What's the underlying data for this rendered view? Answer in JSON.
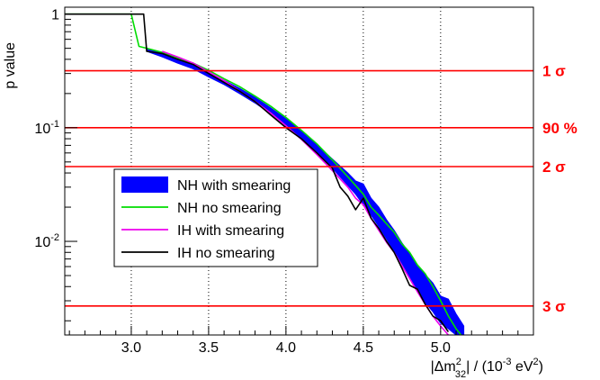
{
  "chart_data": {
    "type": "line",
    "xlabel_main": "|Δm",
    "xlabel_sup": "2",
    "xlabel_sub": "32",
    "xlabel_rest": "| / (10",
    "xlabel_exp": "-3",
    "xlabel_unit": " eV",
    "xlabel_unit_sup": "2",
    "xlabel_close": ")",
    "ylabel": "p value",
    "xlim": [
      2.57,
      5.6
    ],
    "ylim": [
      0.0015,
      1.15
    ],
    "y_scale": "log",
    "x_ticks": [
      "3.0",
      "3.5",
      "4.0",
      "4.5",
      "5.0"
    ],
    "x_tick_values": [
      3.0,
      3.5,
      4.0,
      4.5,
      5.0
    ],
    "y_tick_labels": [
      {
        "value": 1,
        "base": "1",
        "exp": ""
      },
      {
        "value": 0.1,
        "base": "10",
        "exp": "-1"
      },
      {
        "value": 0.01,
        "base": "10",
        "exp": "-2"
      }
    ],
    "grid": "vertical dotted at x ticks",
    "reference_lines": [
      {
        "label": "1 σ",
        "value": 0.3173
      },
      {
        "label": "90 %",
        "value": 0.1
      },
      {
        "label": "2 σ",
        "value": 0.0455
      },
      {
        "label": "3 σ",
        "value": 0.0027
      }
    ],
    "legend_position": "middle-left",
    "series": [
      {
        "name": "NH with smearing",
        "style": "band",
        "color": "#0000ff",
        "x": [
          3.1,
          3.2,
          3.3,
          3.4,
          3.5,
          3.6,
          3.7,
          3.8,
          3.9,
          4.0,
          4.1,
          4.2,
          4.3,
          4.4,
          4.45,
          4.5,
          4.55,
          4.6,
          4.65,
          4.7,
          4.75,
          4.8,
          4.85,
          4.9,
          4.95,
          5.0,
          5.05,
          5.1,
          5.15
        ],
        "y_low": [
          0.47,
          0.42,
          0.37,
          0.33,
          0.28,
          0.24,
          0.2,
          0.165,
          0.133,
          0.104,
          0.08,
          0.06,
          0.044,
          0.031,
          0.026,
          0.021,
          0.017,
          0.0135,
          0.0105,
          0.0082,
          0.0064,
          0.0049,
          0.0037,
          0.0029,
          0.0024,
          0.0019,
          0.0017,
          0.0015,
          0.0014
        ],
        "y_high": [
          0.5,
          0.45,
          0.4,
          0.355,
          0.305,
          0.262,
          0.222,
          0.185,
          0.15,
          0.12,
          0.094,
          0.071,
          0.053,
          0.04,
          0.034,
          0.032,
          0.024,
          0.02,
          0.0155,
          0.0125,
          0.0097,
          0.0078,
          0.006,
          0.0051,
          0.0043,
          0.0033,
          0.0031,
          0.0023,
          0.0018
        ]
      },
      {
        "name": "NH no smearing",
        "style": "line",
        "color": "#00dd00",
        "x": [
          2.57,
          3.0,
          3.05,
          3.1,
          3.2,
          3.3,
          3.4,
          3.5,
          3.6,
          3.7,
          3.8,
          3.9,
          4.0,
          4.1,
          4.2,
          4.3,
          4.4,
          4.5,
          4.55,
          4.6,
          4.7,
          4.75,
          4.8,
          4.85,
          4.9,
          4.95,
          5.0,
          5.05,
          5.1,
          5.15
        ],
        "y": [
          1.0,
          1.0,
          0.52,
          0.5,
          0.46,
          0.41,
          0.37,
          0.32,
          0.27,
          0.23,
          0.19,
          0.155,
          0.123,
          0.095,
          0.072,
          0.052,
          0.037,
          0.026,
          0.02,
          0.017,
          0.012,
          0.0095,
          0.008,
          0.0062,
          0.0052,
          0.004,
          0.003,
          0.0022,
          0.0017,
          0.0014
        ]
      },
      {
        "name": "IH with smearing",
        "style": "line",
        "color": "#ee00ee",
        "x": [
          3.2,
          3.3,
          3.4,
          3.5,
          3.6,
          3.7,
          3.8,
          3.9,
          4.0,
          4.1,
          4.2,
          4.3,
          4.4,
          4.45,
          4.5,
          4.55,
          4.6,
          4.65,
          4.7,
          4.75,
          4.8,
          4.85,
          4.9,
          4.95,
          5.0,
          5.05,
          5.1
        ],
        "y": [
          0.47,
          0.42,
          0.37,
          0.31,
          0.26,
          0.21,
          0.17,
          0.135,
          0.104,
          0.079,
          0.058,
          0.042,
          0.03,
          0.024,
          0.021,
          0.016,
          0.0125,
          0.0098,
          0.008,
          0.0061,
          0.0047,
          0.0036,
          0.0028,
          0.0022,
          0.0018,
          0.0015,
          0.0013
        ]
      },
      {
        "name": "IH no smearing",
        "style": "line",
        "color": "#000000",
        "x": [
          2.57,
          3.08,
          3.1,
          3.2,
          3.3,
          3.4,
          3.5,
          3.6,
          3.7,
          3.8,
          3.9,
          4.0,
          4.1,
          4.2,
          4.3,
          4.35,
          4.4,
          4.45,
          4.5,
          4.55,
          4.6,
          4.65,
          4.7,
          4.75,
          4.8,
          4.85,
          4.9,
          4.95,
          5.0,
          5.05
        ],
        "y": [
          1.0,
          1.0,
          0.47,
          0.45,
          0.4,
          0.36,
          0.3,
          0.25,
          0.21,
          0.17,
          0.13,
          0.1,
          0.08,
          0.06,
          0.044,
          0.03,
          0.025,
          0.019,
          0.024,
          0.016,
          0.013,
          0.01,
          0.008,
          0.0058,
          0.0041,
          0.0038,
          0.0028,
          0.0022,
          0.002,
          0.0016
        ]
      }
    ]
  }
}
